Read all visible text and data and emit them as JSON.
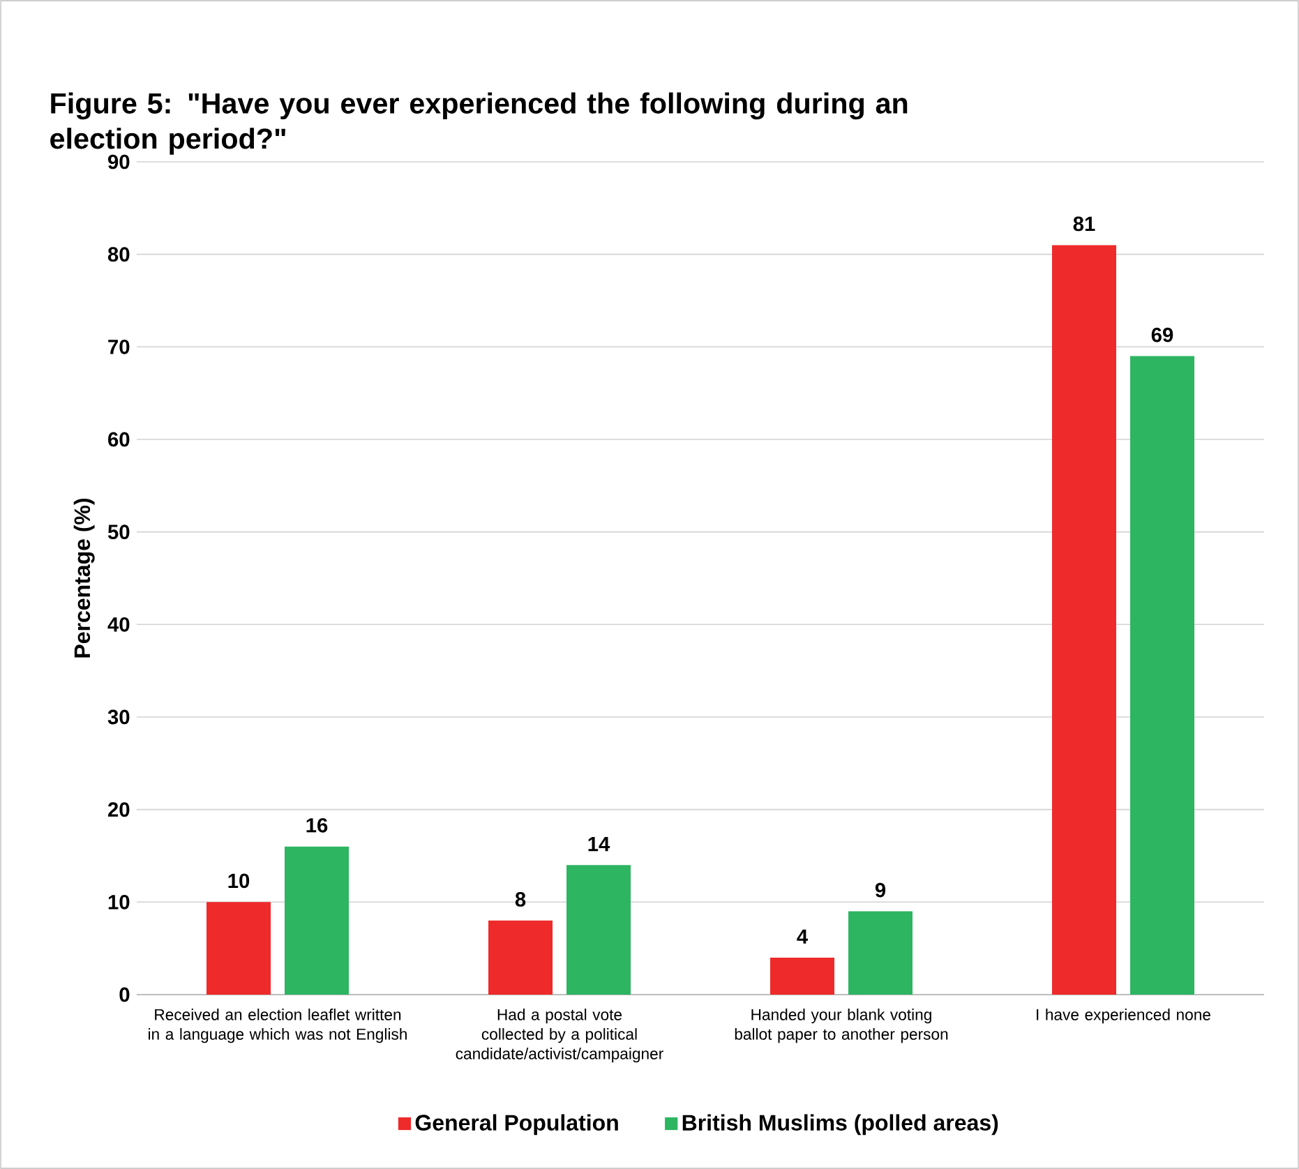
{
  "chart_data": {
    "type": "bar",
    "title": "Figure 5: \"Have you ever experienced the following during an election period?\"",
    "ylabel": "Percentage (%)",
    "categories": [
      "Received an election leaflet written in a language which was not English",
      "Had a postal vote collected by a political candidate/activist/campaigner",
      "Handed your blank voting ballot paper to another person",
      "I have experienced none"
    ],
    "series": [
      {
        "name": "General Population",
        "color": "#ee2a2a",
        "values": [
          10,
          8,
          4,
          81
        ]
      },
      {
        "name": "British Muslims (polled areas)",
        "color": "#2db562",
        "values": [
          16,
          14,
          9,
          69
        ]
      }
    ],
    "ylim": [
      0,
      90
    ],
    "yticks": [
      0,
      10,
      20,
      30,
      40,
      50,
      60,
      70,
      80,
      90
    ],
    "grid": "y",
    "legend": "bottom",
    "data_labels": true
  }
}
